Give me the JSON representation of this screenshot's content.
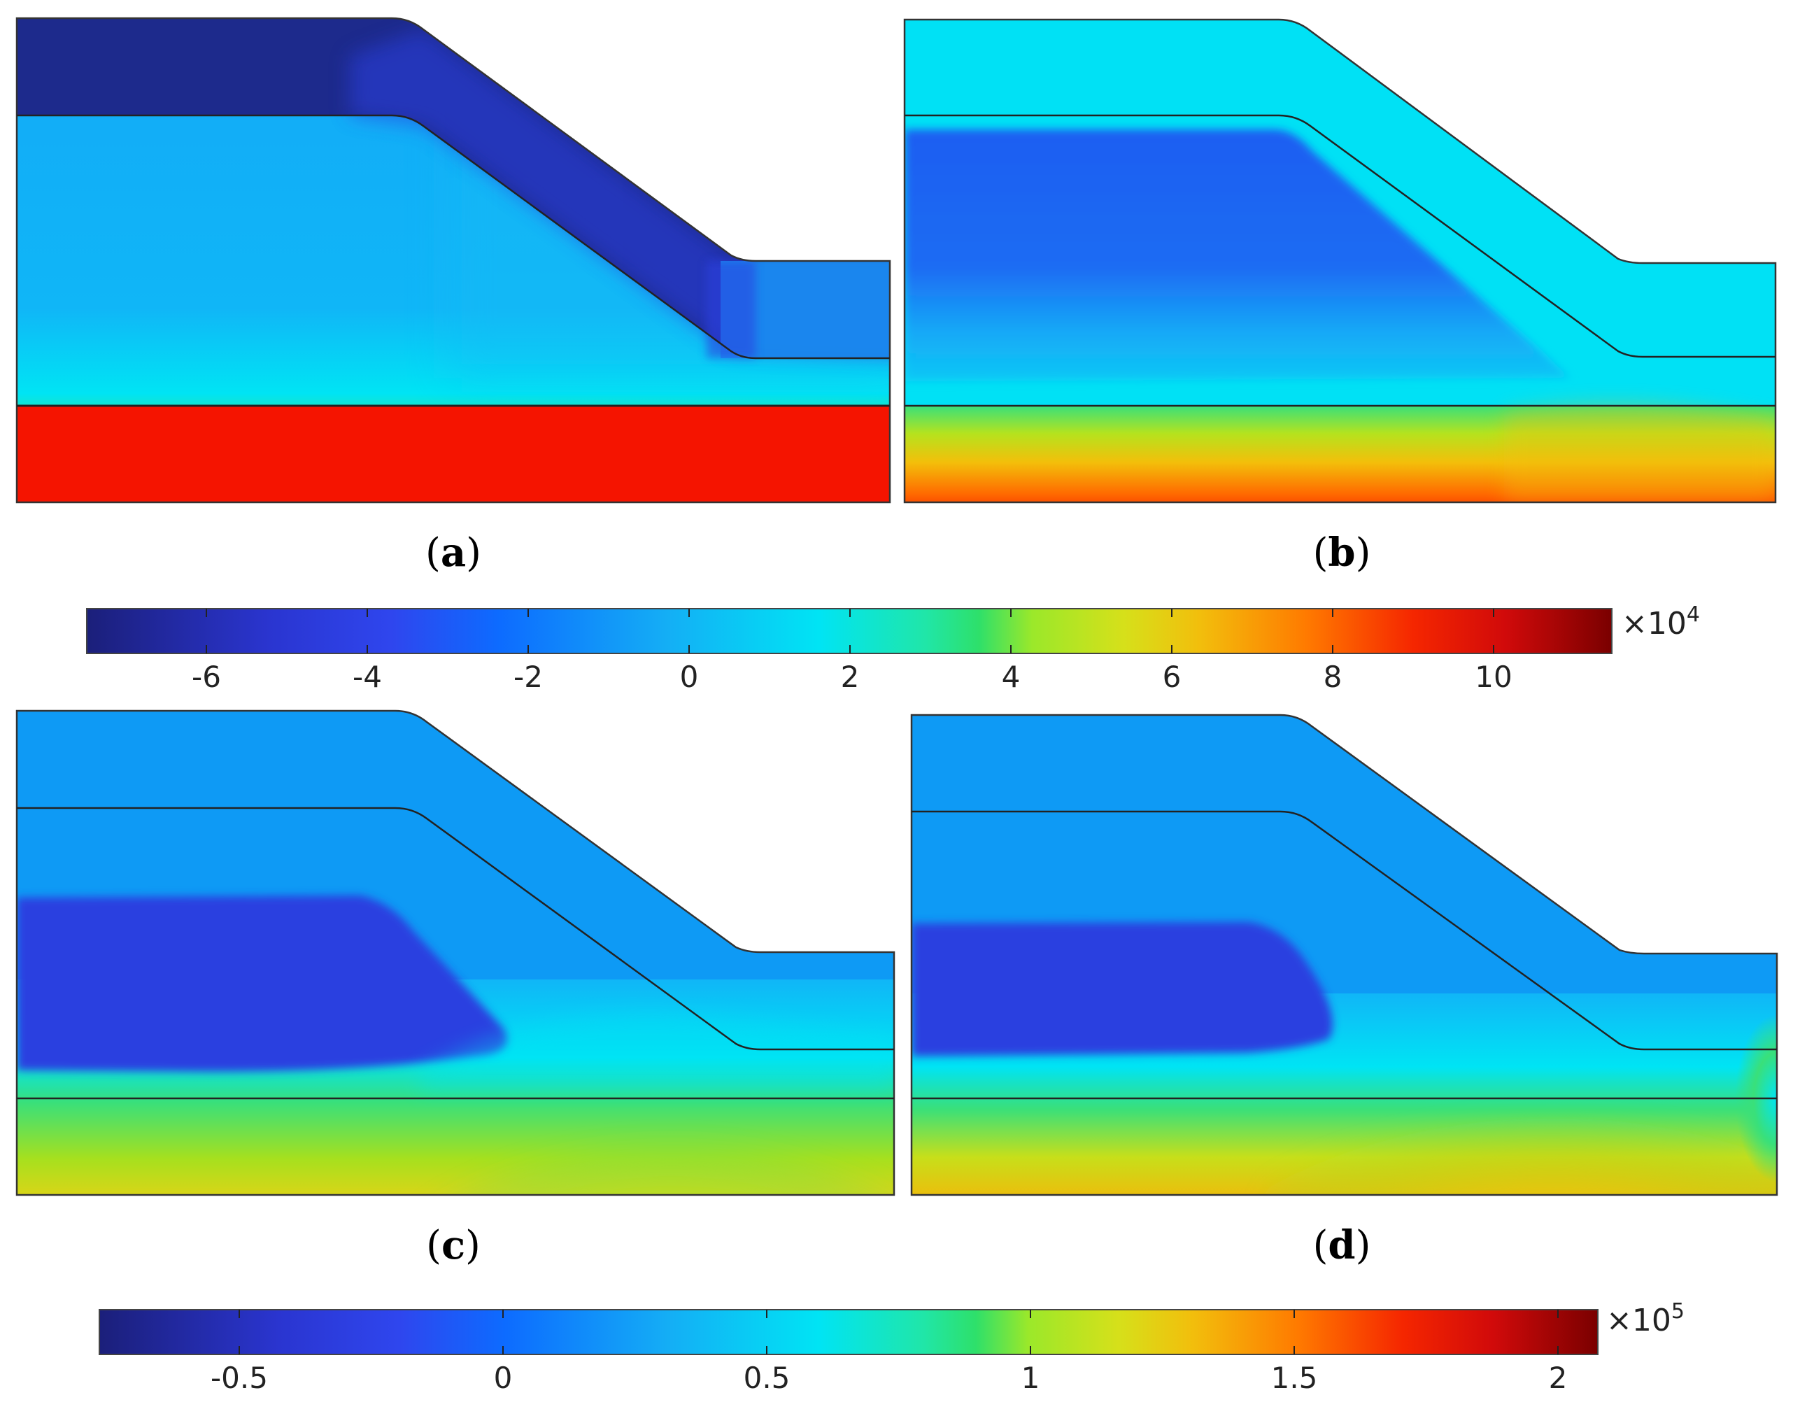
{
  "panels": [
    {
      "id": "a",
      "label": "a"
    },
    {
      "id": "b",
      "label": "b"
    },
    {
      "id": "c",
      "label": "c"
    },
    {
      "id": "d",
      "label": "d"
    }
  ],
  "colorbars": [
    {
      "id": "top",
      "multiplier_base": "×10",
      "multiplier_exp": "4",
      "ticks": [
        "-6",
        "-4",
        "-2",
        "0",
        "2",
        "4",
        "6",
        "8",
        "10"
      ]
    },
    {
      "id": "bottom",
      "multiplier_base": "×10",
      "multiplier_exp": "5",
      "ticks": [
        "-0.5",
        "0",
        "0.5",
        "1",
        "1.5",
        "2"
      ]
    }
  ],
  "colors": {
    "c_darkblue": "#1e2a8a",
    "c_royal": "#2a3fe0",
    "c_blue": "#1f5ef2",
    "c_mid": "#0a8ef5",
    "c_lightblue": "#13a8f7",
    "c_cyan": "#00e4f4",
    "c_green": "#39e07a",
    "c_yellow": "#f1c10a",
    "c_orange": "#ff6a00",
    "c_red": "#f51300",
    "c_darkred": "#880000"
  }
}
